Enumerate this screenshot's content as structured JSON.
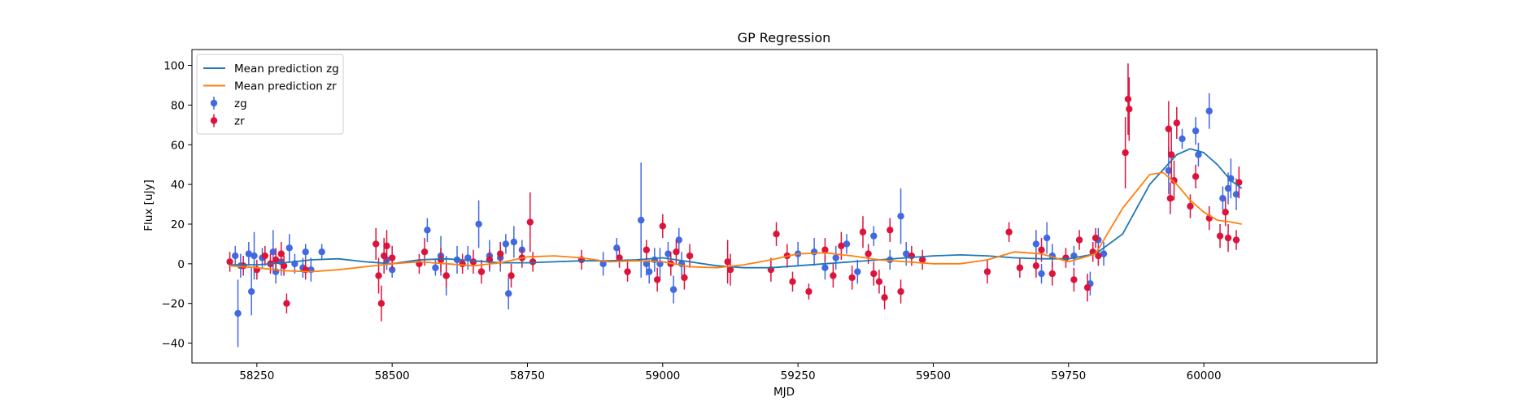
{
  "chart_data": {
    "type": "line",
    "title": "GP Regression",
    "xlabel": "MJD",
    "ylabel": "Flux [uJy]",
    "xlim": [
      58130,
      60320
    ],
    "ylim": [
      -50,
      108
    ],
    "xticks": [
      58250,
      58500,
      58750,
      59000,
      59250,
      59500,
      59750,
      60000
    ],
    "yticks": [
      -40,
      -20,
      0,
      20,
      40,
      60,
      80,
      100
    ],
    "grid": false,
    "legend_position": "top-left",
    "legend": [
      {
        "label": "Mean prediction zg",
        "kind": "line",
        "color": "#1f77b4"
      },
      {
        "label": "Mean prediction zr",
        "kind": "line",
        "color": "#ff7f0e"
      },
      {
        "label": "zg",
        "kind": "errorbar",
        "color": "#4169e1"
      },
      {
        "label": "zr",
        "kind": "errorbar",
        "color": "#dc143c"
      }
    ],
    "series": [
      {
        "name": "Mean prediction zg",
        "kind": "line",
        "color": "#1f77b4",
        "x": [
          58200,
          58250,
          58300,
          58350,
          58400,
          58450,
          58500,
          58550,
          58600,
          58650,
          58700,
          58750,
          58800,
          58850,
          58900,
          58950,
          59000,
          59050,
          59100,
          59150,
          59200,
          59250,
          59300,
          59350,
          59400,
          59450,
          59500,
          59550,
          59600,
          59650,
          59700,
          59750,
          59800,
          59850,
          59900,
          59950,
          59975,
          60000,
          60025,
          60050,
          60070
        ],
        "y": [
          -0.5,
          -0.5,
          0.5,
          2,
          2.5,
          1,
          0,
          2,
          2.5,
          1.5,
          0.5,
          0.5,
          1,
          1.5,
          1.5,
          2,
          3,
          1,
          -1,
          -2,
          -2,
          -1,
          0,
          1,
          2,
          3,
          4,
          4.5,
          4,
          3,
          2.5,
          2.5,
          5,
          15,
          40,
          55,
          58,
          56,
          50,
          42,
          38
        ]
      },
      {
        "name": "Mean prediction zr",
        "kind": "line",
        "color": "#ff7f0e",
        "x": [
          58200,
          58250,
          58300,
          58350,
          58400,
          58450,
          58500,
          58550,
          58600,
          58650,
          58700,
          58750,
          58800,
          58850,
          58900,
          58950,
          59000,
          59050,
          59100,
          59150,
          59200,
          59250,
          59300,
          59350,
          59400,
          59450,
          59500,
          59550,
          59600,
          59650,
          59700,
          59750,
          59800,
          59850,
          59900,
          59925,
          59950,
          59975,
          60000,
          60025,
          60050,
          60070
        ],
        "y": [
          -1,
          -2,
          -3.5,
          -4,
          -3,
          -1.5,
          0,
          1,
          0,
          -1,
          0.5,
          3.5,
          4,
          3,
          1,
          1.5,
          1,
          -1.5,
          -2,
          -0.5,
          2,
          5,
          5.5,
          4,
          2,
          1,
          0,
          0,
          2,
          6,
          5,
          1,
          5,
          28,
          45,
          46,
          40,
          32,
          26,
          22,
          21,
          20
        ]
      },
      {
        "name": "zg",
        "kind": "errorbar",
        "color": "#4169e1",
        "points": [
          [
            58210,
            4,
            5
          ],
          [
            58215,
            -25,
            17
          ],
          [
            58220,
            -1,
            6
          ],
          [
            58235,
            5,
            6
          ],
          [
            58240,
            -14,
            12
          ],
          [
            58245,
            4,
            12
          ],
          [
            58260,
            3,
            5
          ],
          [
            58280,
            6,
            11
          ],
          [
            58285,
            -4,
            6
          ],
          [
            58295,
            1,
            7
          ],
          [
            58310,
            8,
            7
          ],
          [
            58320,
            0,
            5
          ],
          [
            58335,
            -2,
            5
          ],
          [
            58340,
            6,
            4
          ],
          [
            58350,
            -3,
            6
          ],
          [
            58370,
            6,
            4
          ],
          [
            58490,
            2,
            5
          ],
          [
            58500,
            -3,
            4
          ],
          [
            58565,
            17,
            6
          ],
          [
            58580,
            -2,
            4
          ],
          [
            58590,
            4,
            10
          ],
          [
            58600,
            -6,
            10
          ],
          [
            58620,
            2,
            7
          ],
          [
            58640,
            3,
            6
          ],
          [
            58660,
            20,
            12
          ],
          [
            58680,
            4,
            8
          ],
          [
            58700,
            3,
            7
          ],
          [
            58710,
            10,
            5
          ],
          [
            58715,
            -15,
            8
          ],
          [
            58725,
            11,
            8
          ],
          [
            58740,
            7,
            5
          ],
          [
            58890,
            0,
            6
          ],
          [
            58915,
            8,
            5
          ],
          [
            58960,
            22,
            29
          ],
          [
            58970,
            0,
            6
          ],
          [
            58975,
            -4,
            6
          ],
          [
            58985,
            2,
            6
          ],
          [
            58995,
            0,
            8
          ],
          [
            59010,
            5,
            6
          ],
          [
            59020,
            -13,
            7
          ],
          [
            59030,
            12,
            6
          ],
          [
            59035,
            0,
            6
          ],
          [
            59250,
            5,
            6
          ],
          [
            59280,
            6,
            7
          ],
          [
            59300,
            -2,
            6
          ],
          [
            59320,
            3,
            6
          ],
          [
            59340,
            10,
            5
          ],
          [
            59360,
            -4,
            6
          ],
          [
            59390,
            14,
            5
          ],
          [
            59420,
            2,
            5
          ],
          [
            59440,
            24,
            14
          ],
          [
            59450,
            5,
            6
          ],
          [
            59690,
            10,
            7
          ],
          [
            59700,
            -5,
            5
          ],
          [
            59710,
            13,
            8
          ],
          [
            59720,
            4,
            6
          ],
          [
            59760,
            4,
            5
          ],
          [
            59790,
            -10,
            6
          ],
          [
            59805,
            12,
            6
          ],
          [
            59815,
            5,
            6
          ],
          [
            59935,
            47,
            12
          ],
          [
            59960,
            63,
            5
          ],
          [
            59985,
            67,
            7
          ],
          [
            59990,
            55,
            6
          ],
          [
            60010,
            77,
            9
          ],
          [
            60035,
            33,
            6
          ],
          [
            60045,
            38,
            8
          ],
          [
            60050,
            43,
            10
          ],
          [
            60060,
            35,
            8
          ]
        ]
      },
      {
        "name": "zr",
        "kind": "errorbar",
        "color": "#dc143c",
        "points": [
          [
            58200,
            1,
            5
          ],
          [
            58225,
            -1,
            5
          ],
          [
            58250,
            -3,
            5
          ],
          [
            58265,
            4,
            5
          ],
          [
            58275,
            0,
            5
          ],
          [
            58285,
            2,
            6
          ],
          [
            58295,
            5,
            6
          ],
          [
            58300,
            -1,
            5
          ],
          [
            58305,
            -20,
            5
          ],
          [
            58340,
            -3,
            5
          ],
          [
            58470,
            10,
            8
          ],
          [
            58475,
            -6,
            9
          ],
          [
            58480,
            -20,
            9
          ],
          [
            58485,
            4,
            9
          ],
          [
            58490,
            9,
            8
          ],
          [
            58500,
            3,
            6
          ],
          [
            58550,
            0,
            5
          ],
          [
            58560,
            6,
            7
          ],
          [
            58590,
            2,
            6
          ],
          [
            58600,
            -6,
            6
          ],
          [
            58630,
            0,
            5
          ],
          [
            58650,
            1,
            6
          ],
          [
            58665,
            -4,
            6
          ],
          [
            58680,
            2,
            5
          ],
          [
            58700,
            5,
            6
          ],
          [
            58720,
            -6,
            6
          ],
          [
            58740,
            3,
            5
          ],
          [
            58755,
            21,
            15
          ],
          [
            58760,
            1,
            5
          ],
          [
            58850,
            2,
            5
          ],
          [
            58920,
            3,
            5
          ],
          [
            58935,
            -4,
            5
          ],
          [
            58970,
            7,
            5
          ],
          [
            58990,
            -8,
            6
          ],
          [
            59000,
            19,
            6
          ],
          [
            59015,
            0,
            6
          ],
          [
            59025,
            6,
            6
          ],
          [
            59040,
            -7,
            6
          ],
          [
            59050,
            4,
            6
          ],
          [
            59120,
            1,
            11
          ],
          [
            59125,
            -3,
            8
          ],
          [
            59200,
            -3,
            6
          ],
          [
            59210,
            15,
            6
          ],
          [
            59230,
            4,
            6
          ],
          [
            59240,
            -9,
            5
          ],
          [
            59270,
            -14,
            4
          ],
          [
            59300,
            7,
            6
          ],
          [
            59315,
            -6,
            6
          ],
          [
            59330,
            9,
            7
          ],
          [
            59350,
            -7,
            6
          ],
          [
            59370,
            16,
            8
          ],
          [
            59380,
            5,
            5
          ],
          [
            59390,
            -5,
            6
          ],
          [
            59400,
            -9,
            6
          ],
          [
            59410,
            -17,
            6
          ],
          [
            59420,
            17,
            6
          ],
          [
            59440,
            -14,
            6
          ],
          [
            59460,
            4,
            5
          ],
          [
            59480,
            2,
            5
          ],
          [
            59600,
            -4,
            6
          ],
          [
            59640,
            16,
            5
          ],
          [
            59660,
            -2,
            5
          ],
          [
            59690,
            -1,
            6
          ],
          [
            59700,
            7,
            6
          ],
          [
            59720,
            -5,
            6
          ],
          [
            59745,
            3,
            5
          ],
          [
            59760,
            -8,
            6
          ],
          [
            59770,
            12,
            5
          ],
          [
            59785,
            -12,
            7
          ],
          [
            59795,
            6,
            5
          ],
          [
            59800,
            13,
            5
          ],
          [
            59805,
            4,
            5
          ],
          [
            59855,
            56,
            18
          ],
          [
            59860,
            83,
            18
          ],
          [
            59862,
            78,
            16
          ],
          [
            59935,
            68,
            14
          ],
          [
            59938,
            33,
            8
          ],
          [
            59940,
            55,
            12
          ],
          [
            59945,
            42,
            10
          ],
          [
            59950,
            71,
            8
          ],
          [
            59975,
            29,
            6
          ],
          [
            59985,
            44,
            6
          ],
          [
            60010,
            23,
            6
          ],
          [
            60030,
            14,
            6
          ],
          [
            60040,
            26,
            7
          ],
          [
            60045,
            13,
            7
          ],
          [
            60060,
            12,
            5
          ],
          [
            60065,
            41,
            8
          ]
        ]
      }
    ]
  }
}
